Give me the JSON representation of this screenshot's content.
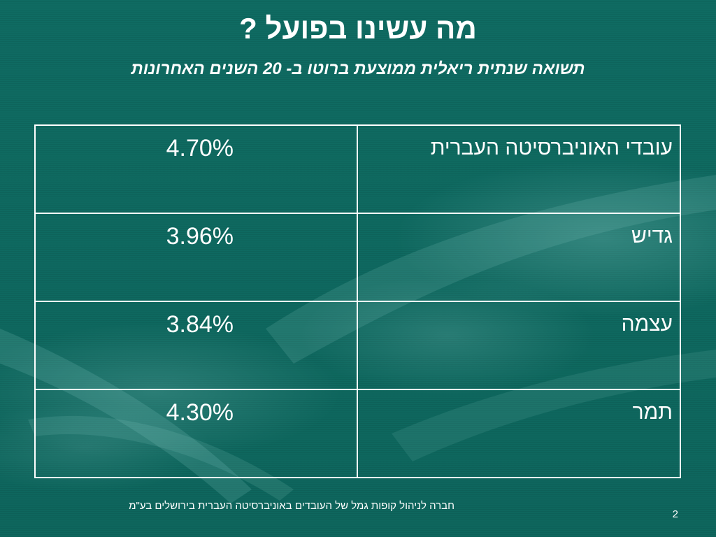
{
  "slide": {
    "title": "מה עשינו בפועל ?",
    "subtitle": "תשואה שנתית ריאלית ממוצעת ברוטו ב- 20 השנים האחרונות",
    "rows": [
      {
        "label": "עובדי האוניברסיטה העברית",
        "value": "4.70%"
      },
      {
        "label": "גדיש",
        "value": "3.96%"
      },
      {
        "label": "עצמה",
        "value": "3.84%"
      },
      {
        "label": "תמר",
        "value": "4.30%"
      }
    ],
    "footer": "חברה לניהול קופות גמל של העובדים באוניברסיטה העברית בירושלים בע\"מ",
    "page_number": "2"
  },
  "colors": {
    "background": "#0f6b62",
    "text": "#ffffff",
    "table_border": "#ffffff"
  }
}
